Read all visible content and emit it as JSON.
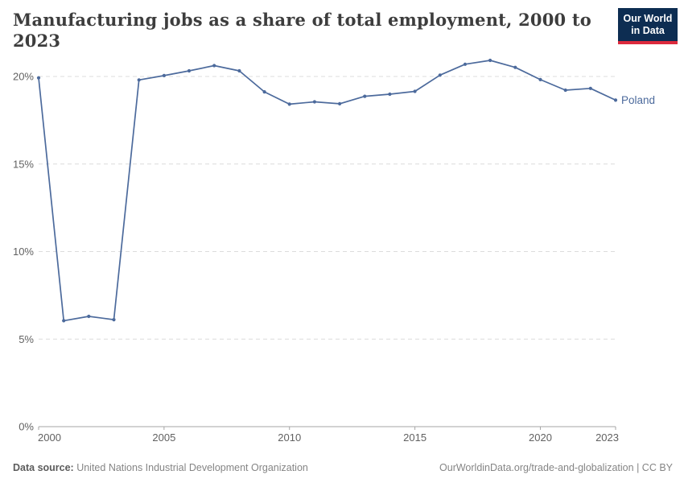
{
  "header": {
    "title": "Manufacturing jobs as a share of total employment, 2000 to 2023",
    "logo": {
      "line1": "Our World",
      "line2": "in Data"
    }
  },
  "chart_data": {
    "type": "line",
    "title": "Manufacturing jobs as a share of total employment, 2000 to 2023",
    "x": [
      2000,
      2001,
      2002,
      2003,
      2004,
      2005,
      2006,
      2007,
      2008,
      2009,
      2010,
      2011,
      2012,
      2013,
      2014,
      2015,
      2016,
      2017,
      2018,
      2019,
      2020,
      2021,
      2022,
      2023
    ],
    "series": [
      {
        "name": "Poland",
        "color": "#4C6A9C",
        "values": [
          19.92,
          6.05,
          6.3,
          6.11,
          19.8,
          20.05,
          20.32,
          20.62,
          20.32,
          19.12,
          18.42,
          18.55,
          18.44,
          18.87,
          18.99,
          19.15,
          20.08,
          20.7,
          20.92,
          20.52,
          19.82,
          19.22,
          19.32,
          18.65
        ]
      }
    ],
    "xlabel": "",
    "ylabel": "",
    "xlim": [
      2000,
      2023
    ],
    "ylim": [
      0,
      21.5
    ],
    "x_tick_values": [
      2000,
      2005,
      2010,
      2015,
      2020,
      2023
    ],
    "x_tick_labels": [
      "2000",
      "2005",
      "2010",
      "2015",
      "2020",
      "2023"
    ],
    "y_tick_values": [
      0,
      5,
      10,
      15,
      20
    ],
    "y_tick_labels": [
      "0%",
      "5%",
      "10%",
      "15%",
      "20%"
    ],
    "grid": "horizontal-dashed",
    "legend_position": "end-of-line",
    "line_color": "#4C6A9C",
    "grid_color": "#dcdcdc",
    "axis_color": "#a5a5a5",
    "tick_label_color": "#616161"
  },
  "footer": {
    "source_label": "Data source:",
    "source_text": " United Nations Industrial Development Organization",
    "link_text": "OurWorldinData.org/trade-and-globalization",
    "separator": " | ",
    "license_text": "CC BY"
  }
}
